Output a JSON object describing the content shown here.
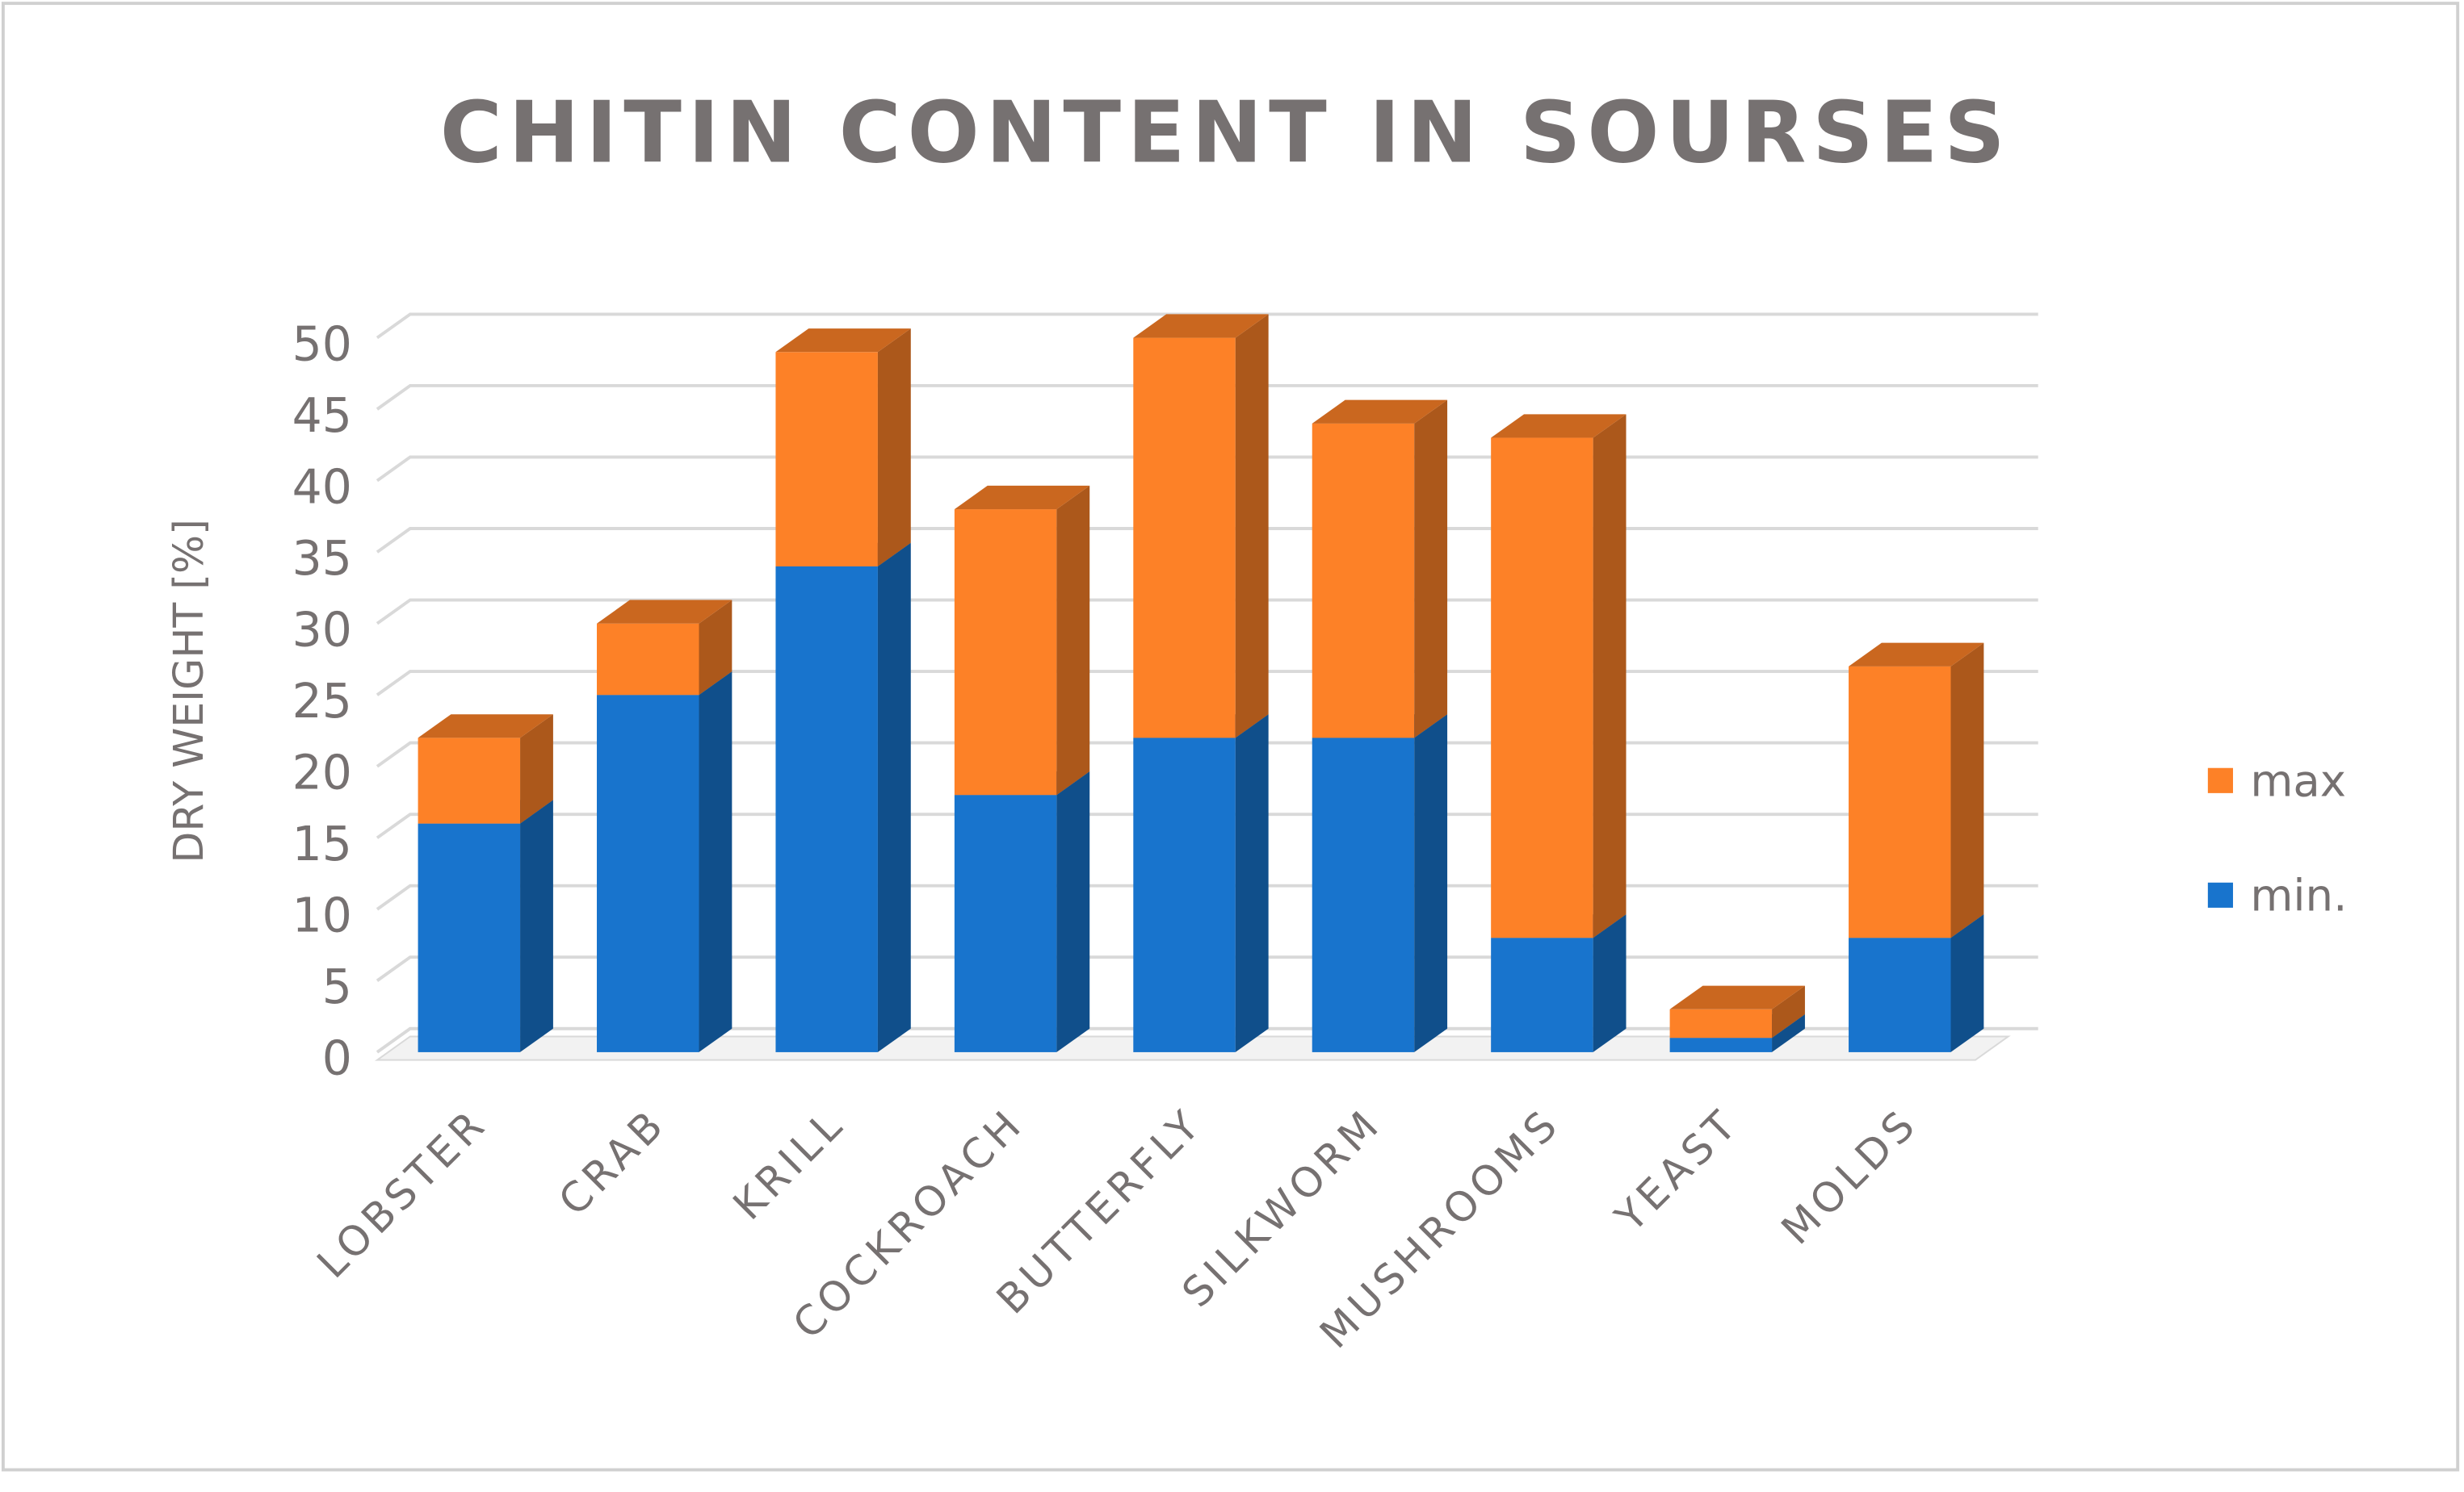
{
  "chart_data": {
    "type": "stacked_bar_3d",
    "title": "CHITIN CONTENT IN SOURSES",
    "y_axis_label": "DRY WEIGHT [%]",
    "categories": [
      "LOBSTER",
      "CRAB",
      "KRILL",
      "COCKROACH",
      "BUTTERFLY",
      "SILKWORM",
      "MUSHROOMS",
      "YEAST",
      "MOLDS"
    ],
    "series": [
      {
        "name": "min.",
        "color": "#1874cd",
        "values": [
          16,
          25,
          34,
          18,
          22,
          22,
          8,
          1,
          8
        ]
      },
      {
        "name": "max",
        "color": "#fd8127",
        "values": [
          6,
          5,
          15,
          20,
          28,
          22,
          35,
          2,
          19
        ]
      }
    ],
    "ylim": [
      0,
      50
    ],
    "yticks": [
      0,
      5,
      10,
      15,
      20,
      25,
      30,
      35,
      40,
      45,
      50
    ],
    "grid": true,
    "legend": "right"
  }
}
